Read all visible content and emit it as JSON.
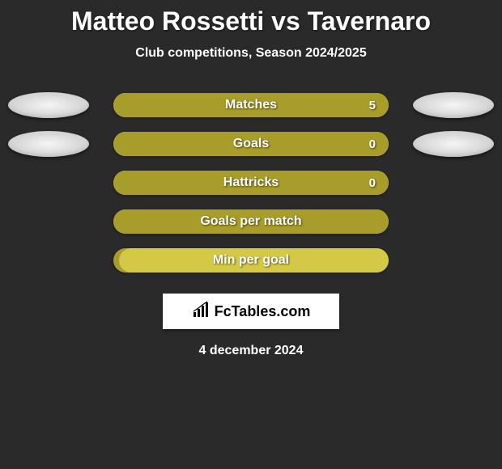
{
  "title": "Matteo Rossetti vs Tavernaro",
  "subtitle": "Club competitions, Season 2024/2025",
  "date": "4 december 2024",
  "logo_text": "FcTables.com",
  "colors": {
    "background": "#2a2a2a",
    "bar_primary": "#a89c2a",
    "bar_secondary": "#d4c847",
    "text": "#ffffff",
    "avatar": "#e0e0e0"
  },
  "stats": [
    {
      "label": "Matches",
      "value_right": "5",
      "has_avatars": true,
      "bar_base_color": "#d4c847",
      "bar_fill_color": "#a89c2a",
      "fill_pct": 100
    },
    {
      "label": "Goals",
      "value_right": "0",
      "has_avatars": true,
      "bar_base_color": "#d4c847",
      "bar_fill_color": "#a89c2a",
      "fill_pct": 100
    },
    {
      "label": "Hattricks",
      "value_right": "0",
      "has_avatars": false,
      "bar_base_color": "#d4c847",
      "bar_fill_color": "#a89c2a",
      "fill_pct": 100
    },
    {
      "label": "Goals per match",
      "value_right": "",
      "has_avatars": false,
      "bar_base_color": "#a89c2a",
      "bar_fill_color": "#a89c2a",
      "fill_pct": 100
    },
    {
      "label": "Min per goal",
      "value_right": "",
      "has_avatars": false,
      "bar_base_color": "#a89c2a",
      "bar_fill_color": "#d4c847",
      "fill_pct": 98
    }
  ]
}
